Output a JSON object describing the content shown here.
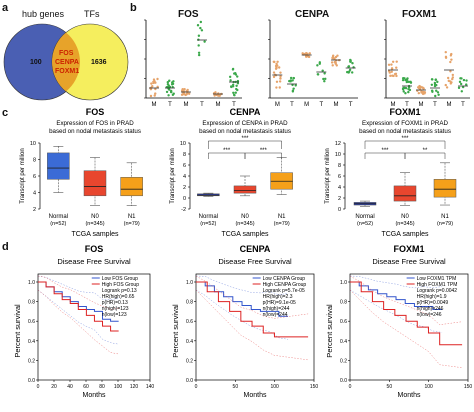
{
  "panels": {
    "a": "a",
    "b": "b",
    "c": "c",
    "d": "d"
  },
  "venn": {
    "left_title": "hub genes",
    "right_title": "TFs",
    "left_only": "100",
    "right_only": "1636",
    "overlap": [
      "FOS",
      "CENPA",
      "FOXM1"
    ],
    "colors": {
      "left": "#4a5fb3",
      "right": "#f5ee5e",
      "overlap": "#cc2200"
    }
  },
  "scatter": {
    "titles": [
      "FOS",
      "CENPA",
      "FOXM1"
    ],
    "group_labels": [
      "M",
      "T",
      "M",
      "T",
      "M",
      "T"
    ]
  },
  "boxplots": [
    {
      "title": "FOS",
      "subtitle1": "Expression of FOS in PRAD",
      "subtitle2": "based on nodal metastasis status",
      "yticks": [
        "2",
        "4",
        "6",
        "8",
        "10"
      ]
    },
    {
      "title": "CENPA",
      "subtitle1": "Expression of CENPA in PRAD",
      "subtitle2": "based on nodal metastasis status",
      "yticks": [
        "-2",
        "0",
        "2",
        "4",
        "6",
        "8",
        "10"
      ]
    },
    {
      "title": "FOXM1",
      "subtitle1": "Expression of FOXM1 in PRAD",
      "subtitle2": "based on nodal metastasis status",
      "yticks": [
        "0",
        "2",
        "4",
        "6",
        "8",
        "10",
        "12"
      ]
    }
  ],
  "box_common": {
    "ylabel": "Transcript per million",
    "xlabel": "TCGA samples",
    "groups": [
      [
        "Normal",
        "(n=52)"
      ],
      [
        "N0",
        "(n=345)"
      ],
      [
        "N1",
        "(n=79)"
      ]
    ],
    "sig": "***",
    "sig2": "**"
  },
  "survival": [
    {
      "title": "FOS",
      "legend": [
        "Low FOS Group",
        "High FOS Group"
      ],
      "stats": [
        "Logrank p=0.13",
        "HR(high)=0.65",
        "p(HR)=0.13",
        "n(high)=123",
        "n(low)=123"
      ],
      "xticks": [
        "0",
        "20",
        "40",
        "60",
        "80",
        "100",
        "120",
        "140"
      ]
    },
    {
      "title": "CENPA",
      "legend": [
        "Low CENPA Group",
        "High CENPA Group"
      ],
      "stats": [
        "Logrank p=5.7e-05",
        "HR(high)=2.3",
        "p(HR)=9.1e-05",
        "n(high)=244",
        "n(low)=244"
      ],
      "xticks": [
        "0",
        "50",
        "100",
        "150"
      ]
    },
    {
      "title": "FOXM1",
      "legend": [
        "Low FOXM1 TPM",
        "High FOXM1 TPM"
      ],
      "stats": [
        "Logrank p=0.0042",
        "HR(high)=1.9",
        "p(HR)=0.0049",
        "n(high)=246",
        "n(low)=246"
      ],
      "xticks": [
        "0",
        "50",
        "100",
        "150"
      ]
    }
  ],
  "surv_common": {
    "subtitle": "Disease Free Survival",
    "ylabel": "Percent survival",
    "xlabel": "Months",
    "yticks": [
      "0.0",
      "0.2",
      "0.4",
      "0.6",
      "0.8",
      "1.0"
    ]
  }
}
